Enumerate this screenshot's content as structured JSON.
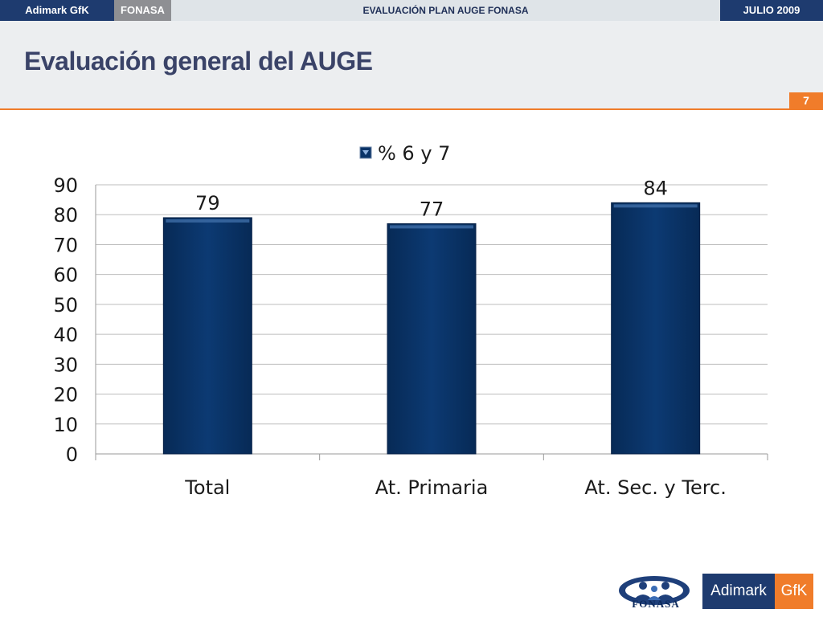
{
  "topbar": {
    "brand": "Adimark GfK",
    "client": "FONASA",
    "project": "EVALUACIÓN PLAN AUGE FONASA",
    "date": "JULIO 2009"
  },
  "header": {
    "title": "Evaluación general del AUGE",
    "page_number": "7"
  },
  "chart_data": {
    "type": "bar",
    "categories": [
      "Total",
      "At. Primaria",
      "At. Sec. y Terc."
    ],
    "series": [
      {
        "name": "% 6 y 7",
        "values": [
          79,
          77,
          84
        ],
        "color": "#0b3468"
      }
    ],
    "ylim": [
      0,
      90
    ],
    "yticks": [
      0,
      10,
      20,
      30,
      40,
      50,
      60,
      70,
      80,
      90
    ],
    "grid": true,
    "legend": "top-center",
    "data_labels": true
  },
  "footer": {
    "fonasa_logo_text": "FONASA",
    "adimark_logo_main": "Adimark",
    "adimark_logo_gfk": "GfK"
  },
  "colors": {
    "navy": "#1e3b6f",
    "orange": "#f07c2a",
    "title": "#3a4368"
  }
}
